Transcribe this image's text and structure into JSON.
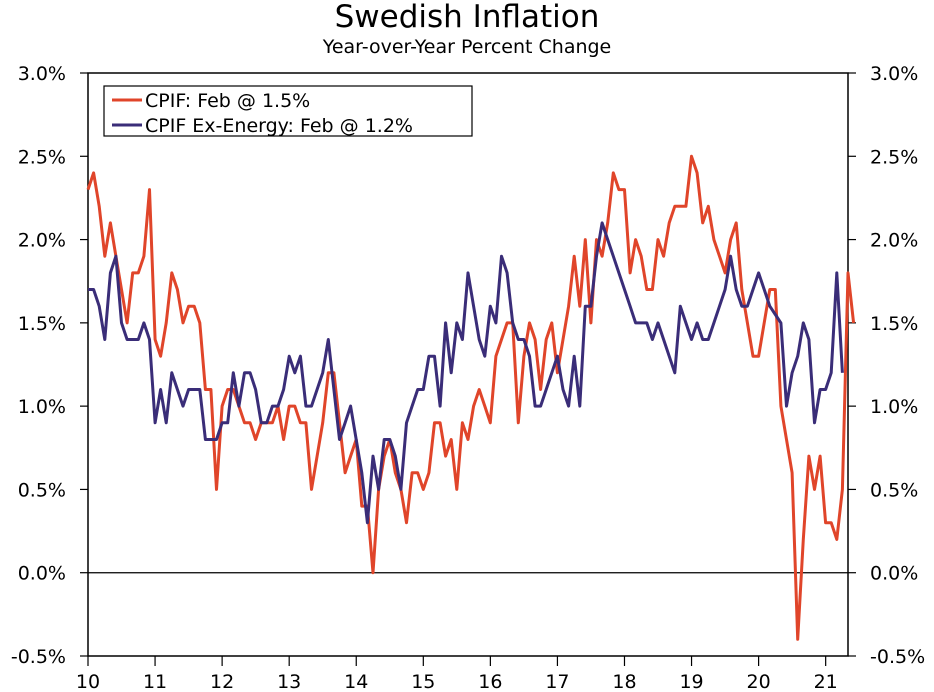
{
  "chart_data": {
    "type": "line",
    "title": "Swedish Inflation",
    "subtitle": "Year-over-Year Percent Change",
    "y_ticks": [
      "3.0%",
      "2.5%",
      "2.0%",
      "1.5%",
      "1.0%",
      "0.5%",
      "0.0%",
      "-0.5%"
    ],
    "y_tick_values": [
      3.0,
      2.5,
      2.0,
      1.5,
      1.0,
      0.5,
      0.0,
      -0.5
    ],
    "ylim": [
      -0.5,
      3.0
    ],
    "x_ticks": [
      "10",
      "11",
      "12",
      "13",
      "14",
      "15",
      "16",
      "17",
      "18",
      "19",
      "20",
      "21"
    ],
    "x_tick_values": [
      2010,
      2011,
      2012,
      2013,
      2014,
      2015,
      2016,
      2017,
      2018,
      2019,
      2020,
      2021
    ],
    "xlim": [
      2010,
      2021.333
    ],
    "grid": false,
    "zero_line": true,
    "legend_position": "top-left",
    "series": [
      {
        "name": "CPIF: Feb @ 1.5%",
        "color": "#e0452a",
        "x_start": 2010.0,
        "x_step": 0.08333,
        "values": [
          2.3,
          2.4,
          2.2,
          1.9,
          2.1,
          1.9,
          1.7,
          1.5,
          1.8,
          1.8,
          1.9,
          2.3,
          1.4,
          1.3,
          1.5,
          1.8,
          1.7,
          1.5,
          1.6,
          1.6,
          1.5,
          1.1,
          1.1,
          0.5,
          1.0,
          1.1,
          1.1,
          1.0,
          0.9,
          0.9,
          0.8,
          0.9,
          0.9,
          0.9,
          1.0,
          0.8,
          1.0,
          1.0,
          0.9,
          0.9,
          0.5,
          0.7,
          0.9,
          1.2,
          1.2,
          0.9,
          0.6,
          0.7,
          0.8,
          0.4,
          0.4,
          0.0,
          0.5,
          0.7,
          0.8,
          0.6,
          0.5,
          0.3,
          0.6,
          0.6,
          0.5,
          0.6,
          0.9,
          0.9,
          0.7,
          0.8,
          0.5,
          0.9,
          0.8,
          1.0,
          1.1,
          1.0,
          0.9,
          1.3,
          1.4,
          1.5,
          1.5,
          0.9,
          1.3,
          1.5,
          1.4,
          1.1,
          1.4,
          1.5,
          1.2,
          1.4,
          1.6,
          1.9,
          1.6,
          2.0,
          1.5,
          2.0,
          1.9,
          2.1,
          2.4,
          2.3,
          2.3,
          1.8,
          2.0,
          1.9,
          1.7,
          1.7,
          2.0,
          1.9,
          2.1,
          2.2,
          2.2,
          2.2,
          2.5,
          2.4,
          2.1,
          2.2,
          2.0,
          1.9,
          1.8,
          2.0,
          2.1,
          1.7,
          1.5,
          1.3,
          1.3,
          1.5,
          1.7,
          1.7,
          1.0,
          0.8,
          0.6,
          -0.4,
          0.2,
          0.7,
          0.5,
          0.7,
          0.3,
          0.3,
          0.2,
          0.5,
          1.8,
          1.5
        ]
      },
      {
        "name": "CPIF Ex-Energy: Feb @ 1.2%",
        "color": "#3a2d78",
        "x_start": 2010.0,
        "x_step": 0.08333,
        "values": [
          1.7,
          1.7,
          1.6,
          1.4,
          1.8,
          1.9,
          1.5,
          1.4,
          1.4,
          1.4,
          1.5,
          1.4,
          0.9,
          1.1,
          0.9,
          1.2,
          1.1,
          1.0,
          1.1,
          1.1,
          1.1,
          0.8,
          0.8,
          0.8,
          0.9,
          0.9,
          1.2,
          1.0,
          1.2,
          1.2,
          1.1,
          0.9,
          0.9,
          1.0,
          1.0,
          1.1,
          1.3,
          1.2,
          1.3,
          1.0,
          1.0,
          1.1,
          1.2,
          1.4,
          1.1,
          0.8,
          0.9,
          1.0,
          0.8,
          0.6,
          0.3,
          0.7,
          0.5,
          0.8,
          0.8,
          0.7,
          0.5,
          0.9,
          1.0,
          1.1,
          1.1,
          1.3,
          1.3,
          1.0,
          1.5,
          1.2,
          1.5,
          1.4,
          1.8,
          1.6,
          1.4,
          1.3,
          1.6,
          1.5,
          1.9,
          1.8,
          1.5,
          1.4,
          1.4,
          1.3,
          1.0,
          1.0,
          1.1,
          1.2,
          1.3,
          1.1,
          1.0,
          1.3,
          1.0,
          1.6,
          1.6,
          1.9,
          2.1,
          2.0,
          1.9,
          1.8,
          1.7,
          1.6,
          1.5,
          1.5,
          1.5,
          1.4,
          1.5,
          1.4,
          1.3,
          1.2,
          1.6,
          1.5,
          1.4,
          1.5,
          1.4,
          1.4,
          1.5,
          1.6,
          1.7,
          1.9,
          1.7,
          1.6,
          1.6,
          1.7,
          1.8,
          1.7,
          1.6,
          1.55,
          1.5,
          1.0,
          1.2,
          1.3,
          1.5,
          1.4,
          0.9,
          1.1,
          1.1,
          1.2,
          1.8,
          1.2
        ]
      }
    ]
  }
}
